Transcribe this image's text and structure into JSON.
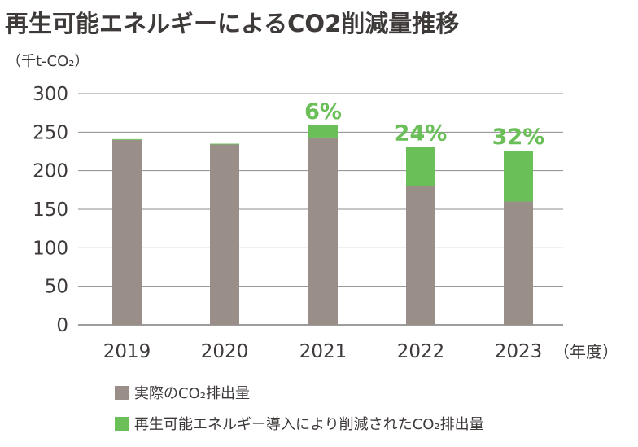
{
  "chart_data": {
    "type": "bar",
    "stacked": true,
    "title": "再生可能エネルギーによるCO2削減量推移",
    "ylabel": "（千t-CO₂）",
    "xlabel_unit": "（年度）",
    "ylim": [
      0,
      300
    ],
    "yticks": [
      0,
      50,
      100,
      150,
      200,
      250,
      300
    ],
    "ytick_labels": [
      "0",
      "50",
      "100",
      "150",
      "200",
      "250",
      "300"
    ],
    "grid": true,
    "categories": [
      "2019",
      "2020",
      "2021",
      "2022",
      "2023"
    ],
    "series": [
      {
        "name": "実際のCO₂排出量",
        "color": "#9a8f88",
        "values": [
          240,
          234,
          243,
          180,
          160
        ]
      },
      {
        "name": "再生可能エネルギー導入により削減されたCO₂排出量",
        "color": "#6abf59",
        "values": [
          1,
          1,
          16,
          51,
          66
        ]
      }
    ],
    "annotations": [
      "",
      "",
      "6%",
      "24%",
      "32%"
    ],
    "annotation_color": "#6abf59",
    "legend_position": "bottom-center"
  }
}
